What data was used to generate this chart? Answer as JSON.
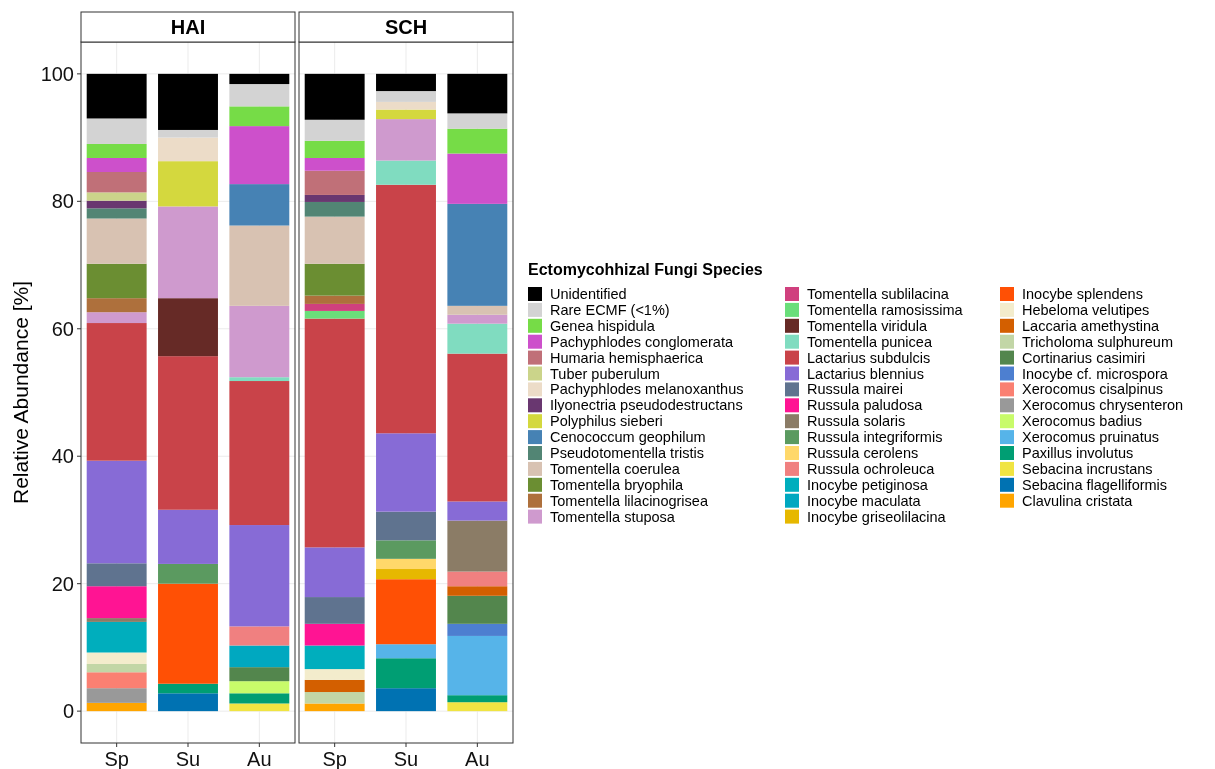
{
  "chart_data": [
    {
      "type": "bar",
      "title": "HAI",
      "ylabel": "Relative Abundance [%]",
      "categories": [
        "Sp",
        "Su",
        "Au"
      ],
      "stacked": true,
      "ylim": [
        -5,
        105
      ],
      "yticks": [
        0,
        20,
        40,
        60,
        80,
        100
      ],
      "grid": true,
      "legend": "right",
      "legend_title": "Ectomycohhizal Fungi Species",
      "series": [
        {
          "name": "Clavulina cristata",
          "color": "#ffa500",
          "values": [
            1.3,
            0,
            0
          ]
        },
        {
          "name": "Sebacina flagelliformis",
          "color": "#0072b2",
          "values": [
            0,
            2.8,
            0
          ]
        },
        {
          "name": "Sebacina incrustans",
          "color": "#f0e442",
          "values": [
            0,
            0,
            1.2
          ]
        },
        {
          "name": "Paxillus involutus",
          "color": "#009e73",
          "values": [
            0,
            1.5,
            1.6
          ]
        },
        {
          "name": "Xerocomus badius",
          "color": "#c8fb6a",
          "values": [
            0,
            0,
            1.9
          ]
        },
        {
          "name": "Xerocomus chrysenteron",
          "color": "#999999",
          "values": [
            2.3,
            0,
            0
          ]
        },
        {
          "name": "Xerocomus cisalpinus",
          "color": "#fa8072",
          "values": [
            2.5,
            0,
            0
          ]
        },
        {
          "name": "Cortinarius casimiri",
          "color": "#53864d",
          "values": [
            0,
            0,
            2.2
          ]
        },
        {
          "name": "Tricholoma sulphureum",
          "color": "#c2d6a6",
          "values": [
            1.3,
            0,
            0
          ]
        },
        {
          "name": "Hebeloma velutipes",
          "color": "#f3eccc",
          "values": [
            1.8,
            0,
            0
          ]
        },
        {
          "name": "Inocybe splendens",
          "color": "#ff5005",
          "values": [
            0,
            15.7,
            0
          ]
        },
        {
          "name": "Inocybe maculata",
          "color": "#00a8c0",
          "values": [
            0,
            0,
            3.4
          ]
        },
        {
          "name": "Inocybe petiginosa",
          "color": "#00aebd",
          "values": [
            4.8,
            0,
            0
          ]
        },
        {
          "name": "Russula ochroleuca",
          "color": "#f08080",
          "values": [
            0,
            0,
            3.0
          ]
        },
        {
          "name": "Russula integriformis",
          "color": "#5b9a60",
          "values": [
            0,
            3.1,
            0
          ]
        },
        {
          "name": "Russula solaris",
          "color": "#8b7c66",
          "values": [
            0.6,
            0,
            0
          ]
        },
        {
          "name": "Russula paludosa",
          "color": "#ff1493",
          "values": [
            5.0,
            0,
            0
          ]
        },
        {
          "name": "Russula mairei",
          "color": "#5f738f",
          "values": [
            3.6,
            0,
            0
          ]
        },
        {
          "name": "Lactarius blennius",
          "color": "#876bd6",
          "values": [
            16.1,
            8.5,
            15.9
          ]
        },
        {
          "name": "Lactarius subdulcis",
          "color": "#c94349",
          "values": [
            21.6,
            24.1,
            22.6
          ]
        },
        {
          "name": "Tomentella punicea",
          "color": "#80dcc0",
          "values": [
            0,
            0,
            0.6
          ]
        },
        {
          "name": "Tomentella viridula",
          "color": "#662a26",
          "values": [
            0,
            9.1,
            0
          ]
        },
        {
          "name": "Tomentella stuposa",
          "color": "#cf9ace",
          "values": [
            1.7,
            14.4,
            11.2
          ]
        },
        {
          "name": "Tomentella lilacinogrisea",
          "color": "#ae703c",
          "values": [
            2.2,
            0,
            0
          ]
        },
        {
          "name": "Tomentella bryophila",
          "color": "#6b8e32",
          "values": [
            5.4,
            0,
            0
          ]
        },
        {
          "name": "Tomentella coerulea",
          "color": "#d8c2b2",
          "values": [
            7.1,
            0,
            12.6
          ]
        },
        {
          "name": "Pseudotomentella tristis",
          "color": "#528574",
          "values": [
            1.6,
            0,
            0
          ]
        },
        {
          "name": "Cenococcum geophilum",
          "color": "#4682b4",
          "values": [
            0,
            0,
            6.5
          ]
        },
        {
          "name": "Polyphilus sieberi",
          "color": "#d4d83e",
          "values": [
            0,
            7.1,
            0
          ]
        },
        {
          "name": "Ilyonectria pseudodestructans",
          "color": "#693770",
          "values": [
            1.2,
            0,
            0
          ]
        },
        {
          "name": "Pachyphlodes melanoxanthus",
          "color": "#ecdcc8",
          "values": [
            0,
            3.7,
            0
          ]
        },
        {
          "name": "Tuber puberulum",
          "color": "#cbd48a",
          "values": [
            1.3,
            0,
            0
          ]
        },
        {
          "name": "Humaria hemisphaerica",
          "color": "#c07078",
          "values": [
            3.2,
            0,
            0
          ]
        },
        {
          "name": "Pachyphlodes conglomerata",
          "color": "#cd50cb",
          "values": [
            2.2,
            0,
            9.1
          ]
        },
        {
          "name": "Genea hispidula",
          "color": "#76dc47",
          "values": [
            2.2,
            0,
            3.1
          ]
        },
        {
          "name": "Rare ECMF (<1%)",
          "color": "#d3d3d3",
          "values": [
            4.0,
            1.2,
            3.5
          ]
        },
        {
          "name": "Unidentified",
          "color": "#000000",
          "values": [
            7.0,
            8.8,
            1.6
          ]
        }
      ]
    },
    {
      "type": "bar",
      "title": "SCH",
      "categories": [
        "Sp",
        "Su",
        "Au"
      ],
      "stacked": true,
      "ylim": [
        -5,
        105
      ],
      "yticks": [
        0,
        20,
        40,
        60,
        80,
        100
      ],
      "grid": true,
      "tick_labels": "x",
      "legend": "right",
      "series": [
        {
          "name": "Clavulina cristata",
          "color": "#ffa500",
          "values": [
            1.2,
            0,
            0
          ]
        },
        {
          "name": "Sebacina flagelliformis",
          "color": "#0072b2",
          "values": [
            0,
            3.6,
            0
          ]
        },
        {
          "name": "Sebacina incrustans",
          "color": "#f0e442",
          "values": [
            0,
            0,
            1.4
          ]
        },
        {
          "name": "Paxillus involutus",
          "color": "#009e73",
          "values": [
            0,
            4.7,
            1.1
          ]
        },
        {
          "name": "Xerocomus pruinatus",
          "color": "#56b4e9",
          "values": [
            0,
            2.2,
            9.3
          ]
        },
        {
          "name": "Xerocomus badius",
          "color": "#c8fb6a",
          "values": [
            0,
            0,
            0
          ]
        },
        {
          "name": "Xerocomus chrysenteron",
          "color": "#999999",
          "values": [
            0,
            0,
            0
          ]
        },
        {
          "name": "Xerocomus cisalpinus",
          "color": "#fa8072",
          "values": [
            0,
            0,
            0
          ]
        },
        {
          "name": "Inocybe cf. microspora",
          "color": "#4d7fd0",
          "values": [
            0,
            0,
            1.9
          ]
        },
        {
          "name": "Cortinarius casimiri",
          "color": "#53864d",
          "values": [
            0,
            0,
            4.4
          ]
        },
        {
          "name": "Tricholoma sulphureum",
          "color": "#c2d6a6",
          "values": [
            1.8,
            0,
            0
          ]
        },
        {
          "name": "Laccaria amethystina",
          "color": "#d35f00",
          "values": [
            1.9,
            0,
            1.5
          ]
        },
        {
          "name": "Hebeloma velutipes",
          "color": "#f3eccc",
          "values": [
            1.7,
            0,
            0
          ]
        },
        {
          "name": "Inocybe splendens",
          "color": "#ff5005",
          "values": [
            0,
            10.2,
            0
          ]
        },
        {
          "name": "Inocybe griseolilacina",
          "color": "#e6b800",
          "values": [
            0,
            1.6,
            0
          ]
        },
        {
          "name": "Inocybe maculata",
          "color": "#00a8c0",
          "values": [
            0,
            0,
            0
          ]
        },
        {
          "name": "Inocybe petiginosa",
          "color": "#00aebd",
          "values": [
            3.7,
            0,
            0
          ]
        },
        {
          "name": "Russula ochroleuca",
          "color": "#f08080",
          "values": [
            0,
            0,
            2.3
          ]
        },
        {
          "name": "Russula cerolens",
          "color": "#ffd86a",
          "values": [
            0,
            1.6,
            0
          ]
        },
        {
          "name": "Russula integriformis",
          "color": "#5b9a60",
          "values": [
            0,
            2.9,
            0
          ]
        },
        {
          "name": "Russula solaris",
          "color": "#8b7c66",
          "values": [
            0,
            0,
            8.0
          ]
        },
        {
          "name": "Russula paludosa",
          "color": "#ff1493",
          "values": [
            3.4,
            0,
            0
          ]
        },
        {
          "name": "Russula mairei",
          "color": "#5f738f",
          "values": [
            4.2,
            4.5,
            0
          ]
        },
        {
          "name": "Lactarius blennius",
          "color": "#876bd6",
          "values": [
            7.8,
            12.3,
            3.0
          ]
        },
        {
          "name": "Lactarius subdulcis",
          "color": "#c94349",
          "values": [
            35.9,
            39.0,
            23.2
          ]
        },
        {
          "name": "Tomentella punicea",
          "color": "#80dcc0",
          "values": [
            0,
            3.8,
            4.7
          ]
        },
        {
          "name": "Tomentella viridula",
          "color": "#662a26",
          "values": [
            0,
            0,
            0
          ]
        },
        {
          "name": "Tomentella ramosissima",
          "color": "#6ade7a",
          "values": [
            1.2,
            0,
            0
          ]
        },
        {
          "name": "Tomentella sublilacina",
          "color": "#d0407e",
          "values": [
            1.1,
            0,
            0
          ]
        },
        {
          "name": "Tomentella stuposa",
          "color": "#cf9ace",
          "values": [
            0,
            6.5,
            1.4
          ]
        },
        {
          "name": "Tomentella lilacinogrisea",
          "color": "#ae703c",
          "values": [
            1.3,
            0,
            0
          ]
        },
        {
          "name": "Tomentella bryophila",
          "color": "#6b8e32",
          "values": [
            5.0,
            0,
            0
          ]
        },
        {
          "name": "Tomentella coerulea",
          "color": "#d8c2b2",
          "values": [
            7.4,
            0,
            1.4
          ]
        },
        {
          "name": "Pseudotomentella tristis",
          "color": "#528574",
          "values": [
            2.3,
            0,
            0
          ]
        },
        {
          "name": "Cenococcum geophilum",
          "color": "#4682b4",
          "values": [
            0,
            0,
            16.0
          ]
        },
        {
          "name": "Polyphilus sieberi",
          "color": "#d4d83e",
          "values": [
            0,
            1.5,
            0
          ]
        },
        {
          "name": "Ilyonectria pseudodestructans",
          "color": "#693770",
          "values": [
            1.1,
            0,
            0
          ]
        },
        {
          "name": "Pachyphlodes melanoxanthus",
          "color": "#ecdcc8",
          "values": [
            0,
            1.2,
            0
          ]
        },
        {
          "name": "Tuber puberulum",
          "color": "#cbd48a",
          "values": [
            0,
            0,
            0
          ]
        },
        {
          "name": "Humaria hemisphaerica",
          "color": "#c07078",
          "values": [
            3.8,
            0,
            0
          ]
        },
        {
          "name": "Pachyphlodes conglomerata",
          "color": "#cd50cb",
          "values": [
            2.0,
            0,
            7.9
          ]
        },
        {
          "name": "Genea hispidula",
          "color": "#76dc47",
          "values": [
            2.7,
            0,
            3.9
          ]
        },
        {
          "name": "Rare ECMF (<1%)",
          "color": "#d3d3d3",
          "values": [
            3.3,
            1.7,
            2.4
          ]
        },
        {
          "name": "Unidentified",
          "color": "#000000",
          "values": [
            7.2,
            2.7,
            6.2
          ]
        }
      ]
    }
  ]
}
